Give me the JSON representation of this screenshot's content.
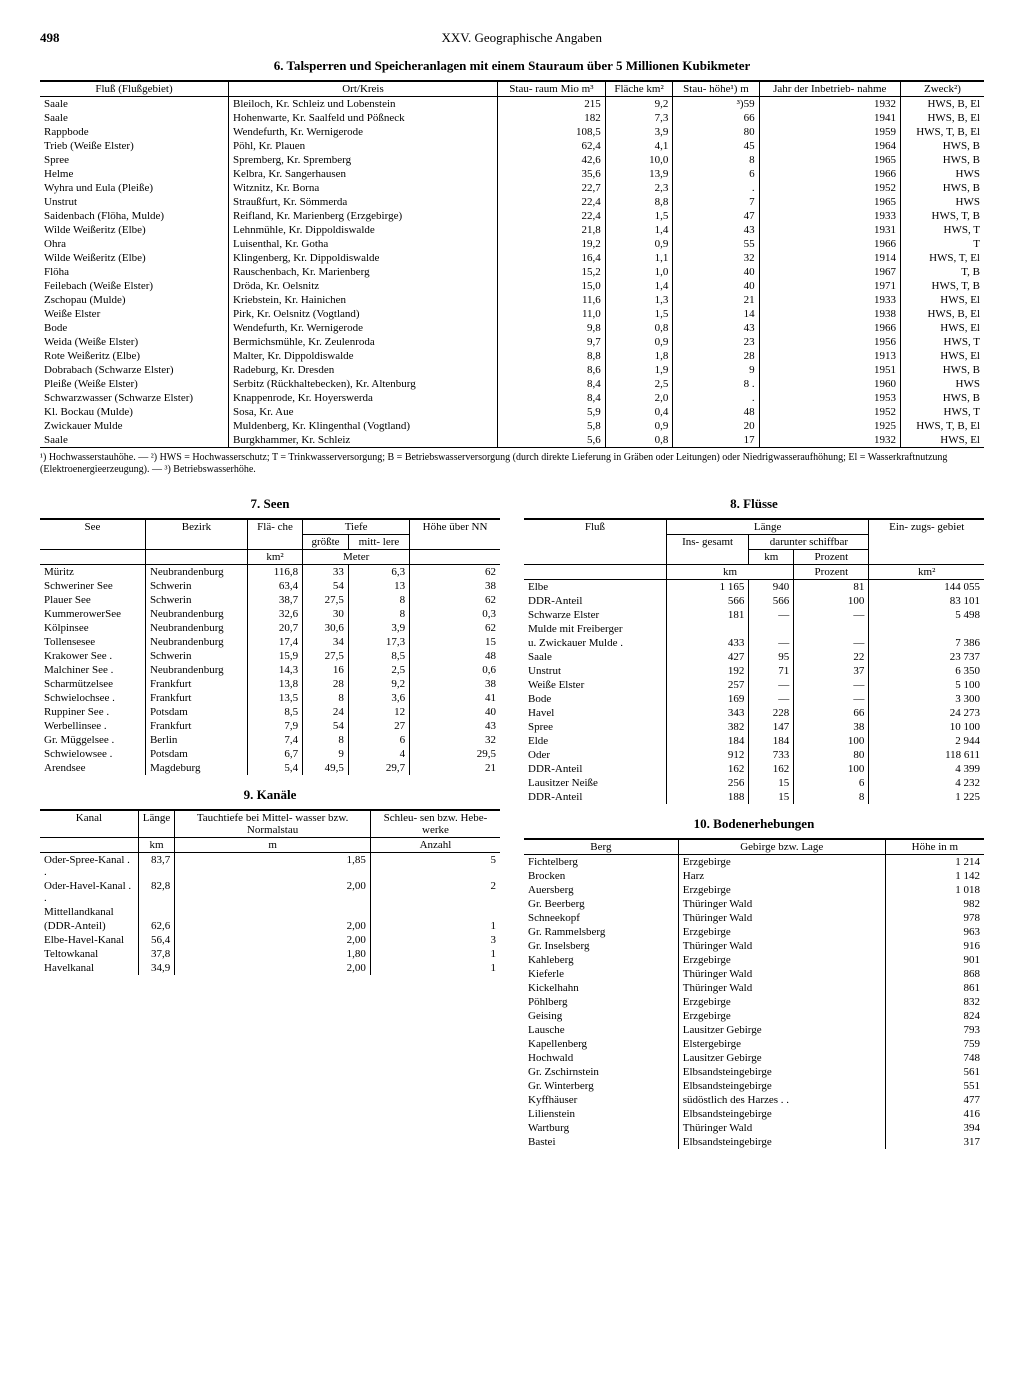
{
  "header": {
    "page_number": "498",
    "chapter": "XXV. Geographische Angaben"
  },
  "table6": {
    "title": "6. Talsperren und Speicheranlagen mit einem Stauraum über 5 Millionen Kubikmeter",
    "columns": [
      "Fluß (Flußgebiet)",
      "Ort/Kreis",
      "Stau-\nraum\nMio m³",
      "Fläche\nkm²",
      "Stau-\nhöhe¹)\nm",
      "Jahr der\nInbetrieb-\nnahme",
      "Zweck²)"
    ],
    "rows": [
      [
        "Saale",
        "Bleiloch, Kr. Schleiz und Lobenstein",
        "215",
        "9,2",
        "³)59",
        "1932",
        "HWS, B, El"
      ],
      [
        "Saale",
        "Hohenwarte, Kr. Saalfeld und Pößneck",
        "182",
        "7,3",
        "66",
        "1941",
        "HWS, B, El"
      ],
      [
        "Rappbode",
        "Wendefurth, Kr. Wernigerode",
        "108,5",
        "3,9",
        "80",
        "1959",
        "HWS, T, B, El"
      ],
      [
        "Trieb (Weiße Elster)",
        "Pöhl, Kr. Plauen",
        "62,4",
        "4,1",
        "45",
        "1964",
        "HWS, B"
      ],
      [
        "Spree",
        "Spremberg, Kr. Spremberg",
        "42,6",
        "10,0",
        "8",
        "1965",
        "HWS, B"
      ],
      [
        "Helme",
        "Kelbra, Kr. Sangerhausen",
        "35,6",
        "13,9",
        "6",
        "1966",
        "HWS"
      ],
      [
        "Wyhra und Eula (Pleiße)",
        "Witznitz, Kr. Borna",
        "22,7",
        "2,3",
        ".",
        "1952",
        "HWS, B"
      ],
      [
        "Unstrut",
        "Straußfurt, Kr. Sömmerda",
        "22,4",
        "8,8",
        "7",
        "1965",
        "HWS"
      ],
      [
        "Saidenbach (Flöha, Mulde)",
        "Reifland, Kr. Marienberg (Erzgebirge)",
        "22,4",
        "1,5",
        "47",
        "1933",
        "HWS, T, B"
      ],
      [
        "Wilde Weißeritz (Elbe)",
        "Lehnmühle, Kr. Dippoldiswalde",
        "21,8",
        "1,4",
        "43",
        "1931",
        "HWS, T"
      ],
      [
        "Ohra",
        "Luisenthal, Kr. Gotha",
        "19,2",
        "0,9",
        "55",
        "1966",
        "T"
      ],
      [
        "Wilde Weißeritz (Elbe)",
        "Klingenberg, Kr. Dippoldiswalde",
        "16,4",
        "1,1",
        "32",
        "1914",
        "HWS, T, El"
      ],
      [
        "Flöha",
        "Rauschenbach, Kr. Marienberg",
        "15,2",
        "1,0",
        "40",
        "1967",
        "T, B"
      ],
      [
        "Feilebach (Weiße Elster)",
        "Dröda, Kr. Oelsnitz",
        "15,0",
        "1,4",
        "40",
        "1971",
        "HWS, T, B"
      ],
      [
        "Zschopau (Mulde)",
        "Kriebstein, Kr. Hainichen",
        "11,6",
        "1,3",
        "21",
        "1933",
        "HWS, El"
      ],
      [
        "Weiße Elster",
        "Pirk, Kr. Oelsnitz (Vogtland)",
        "11,0",
        "1,5",
        "14",
        "1938",
        "HWS, B, El"
      ],
      [
        "Bode",
        "Wendefurth, Kr. Wernigerode",
        "9,8",
        "0,8",
        "43",
        "1966",
        "HWS, El"
      ],
      [
        "Weida (Weiße Elster)",
        "Bermichsmühle, Kr. Zeulenroda",
        "9,7",
        "0,9",
        "23",
        "1956",
        "HWS, T"
      ],
      [
        "Rote Weißeritz (Elbe)",
        "Malter, Kr. Dippoldiswalde",
        "8,8",
        "1,8",
        "28",
        "1913",
        "HWS, El"
      ],
      [
        "Dobrabach (Schwarze Elster)",
        "Radeburg, Kr. Dresden",
        "8,6",
        "1,9",
        "9",
        "1951",
        "HWS, B"
      ],
      [
        "Pleiße (Weiße Elster)",
        "Serbitz (Rückhaltebecken), Kr. Altenburg",
        "8,4",
        "2,5",
        "8 .",
        "1960",
        "HWS"
      ],
      [
        "Schwarzwasser (Schwarze Elster)",
        "Knappenrode, Kr. Hoyerswerda",
        "8,4",
        "2,0",
        ".",
        "1953",
        "HWS, B"
      ],
      [
        "Kl. Bockau (Mulde)",
        "Sosa, Kr. Aue",
        "5,9",
        "0,4",
        "48",
        "1952",
        "HWS, T"
      ],
      [
        "Zwickauer Mulde",
        "Muldenberg, Kr. Klingenthal (Vogtland)",
        "5,8",
        "0,9",
        "20",
        "1925",
        "HWS, T, B, El"
      ],
      [
        "Saale",
        "Burgkhammer, Kr. Schleiz",
        "5,6",
        "0,8",
        "17",
        "1932",
        "HWS, El"
      ]
    ],
    "footnotes": "¹) Hochwasserstauhöhe. — ²) HWS = Hochwasserschutz; T = Trinkwasserversorgung; B = Betriebswasserversorgung (durch direkte Lieferung in Gräben oder Leitungen) oder Niedrigwasseraufhöhung; El = Wasserkraftnutzung (Elektroenergieerzeugung). — ³) Betriebswasserhöhe."
  },
  "table7": {
    "title": "7. Seen",
    "columns": [
      "See",
      "Bezirk",
      "Flä-\nche",
      "Tiefe",
      "Höhe\nüber\nNN"
    ],
    "subcolumns": [
      "",
      "",
      "km²",
      "größte",
      "mitt-\nlere",
      ""
    ],
    "units": [
      "",
      "",
      "km²",
      "Meter",
      "Meter",
      ""
    ],
    "rows": [
      [
        "Müritz",
        "Neubrandenburg",
        "116,8",
        "33",
        "6,3",
        "62"
      ],
      [
        "Schweriner See",
        "Schwerin",
        "63,4",
        "54",
        "13",
        "38"
      ],
      [
        "Plauer See",
        "Schwerin",
        "38,7",
        "27,5",
        "8",
        "62"
      ],
      [
        "KummerowerSee",
        "Neubrandenburg",
        "32,6",
        "30",
        "8",
        "0,3"
      ],
      [
        "Kölpinsee",
        "Neubrandenburg",
        "20,7",
        "30,6",
        "3,9",
        "62"
      ],
      [
        "Tollensesee",
        "Neubrandenburg",
        "17,4",
        "34",
        "17,3",
        "15"
      ],
      [
        "Krakower See .",
        "Schwerin",
        "15,9",
        "27,5",
        "8,5",
        "48"
      ],
      [
        "Malchiner See .",
        "Neubrandenburg",
        "14,3",
        "16",
        "2,5",
        "0,6"
      ],
      [
        "Scharmützelsee",
        "Frankfurt",
        "13,8",
        "28",
        "9,2",
        "38"
      ],
      [
        "Schwielochsee .",
        "Frankfurt",
        "13,5",
        "8",
        "3,6",
        "41"
      ],
      [
        "Ruppiner See .",
        "Potsdam",
        "8,5",
        "24",
        "12",
        "40"
      ],
      [
        "Werbellinsee .",
        "Frankfurt",
        "7,9",
        "54",
        "27",
        "43"
      ],
      [
        "Gr. Müggelsee .",
        "Berlin",
        "7,4",
        "8",
        "6",
        "32"
      ],
      [
        "Schwielowsee .",
        "Potsdam",
        "6,7",
        "9",
        "4",
        "29,5"
      ],
      [
        "Arendsee",
        "Magdeburg",
        "5,4",
        "49,5",
        "29,7",
        "21"
      ]
    ]
  },
  "table8": {
    "title": "8. Flüsse",
    "columns": [
      "Fluß",
      "Länge",
      "Ein-\nzugs-\ngebiet"
    ],
    "sub1": [
      "",
      "Ins-\ngesamt",
      "darunter\nschiffbar",
      ""
    ],
    "sub2": [
      "",
      "km",
      "km",
      "Prozent",
      "km²"
    ],
    "rows": [
      [
        "Elbe",
        "1 165",
        "940",
        "81",
        "144 055"
      ],
      [
        "  DDR-Anteil",
        "566",
        "566",
        "100",
        "83 101"
      ],
      [
        "  Schwarze Elster",
        "181",
        "—",
        "—",
        "5 498"
      ],
      [
        "  Mulde mit Freiberger",
        "",
        "",
        "",
        ""
      ],
      [
        "   u. Zwickauer Mulde .",
        "433",
        "—",
        "—",
        "7 386"
      ],
      [
        "  Saale",
        "427",
        "95",
        "22",
        "23 737"
      ],
      [
        "   Unstrut",
        "192",
        "71",
        "37",
        "6 350"
      ],
      [
        "   Weiße Elster",
        "257",
        "—",
        "—",
        "5 100"
      ],
      [
        "   Bode",
        "169",
        "—",
        "—",
        "3 300"
      ],
      [
        "  Havel",
        "343",
        "228",
        "66",
        "24 273"
      ],
      [
        "   Spree",
        "382",
        "147",
        "38",
        "10 100"
      ],
      [
        "  Elde",
        "184",
        "184",
        "100",
        "2 944"
      ],
      [
        "Oder",
        "912",
        "733",
        "80",
        "118 611"
      ],
      [
        "  DDR-Anteil",
        "162",
        "162",
        "100",
        "4 399"
      ],
      [
        "  Lausitzer Neiße",
        "256",
        "15",
        "6",
        "4 232"
      ],
      [
        "   DDR-Anteil",
        "188",
        "15",
        "8",
        "1 225"
      ]
    ]
  },
  "table9": {
    "title": "9. Kanäle",
    "columns": [
      "Kanal",
      "Länge",
      "Tauchtiefe\nbei\nMittel-\nwasser\nbzw.\nNormalstau",
      "Schleu-\nsen\nbzw.\nHebe-\nwerke"
    ],
    "units": [
      "",
      "km",
      "m",
      "Anzahl"
    ],
    "rows": [
      [
        "Oder-Spree-Kanal . .",
        "83,7",
        "1,85",
        "5"
      ],
      [
        "Oder-Havel-Kanal . .",
        "82,8",
        "2,00",
        "2"
      ],
      [
        "Mittellandkanal",
        "",
        "",
        ""
      ],
      [
        "  (DDR-Anteil)",
        "62,6",
        "2,00",
        "1"
      ],
      [
        "Elbe-Havel-Kanal",
        "56,4",
        "2,00",
        "3"
      ],
      [
        "Teltowkanal",
        "37,8",
        "1,80",
        "1"
      ],
      [
        "Havelkanal",
        "34,9",
        "2,00",
        "1"
      ]
    ]
  },
  "table10": {
    "title": "10. Bodenerhebungen",
    "columns": [
      "Berg",
      "Gebirge bzw. Lage",
      "Höhe in m"
    ],
    "rows": [
      [
        "Fichtelberg",
        "Erzgebirge",
        "1 214"
      ],
      [
        "Brocken",
        "Harz",
        "1 142"
      ],
      [
        "Auersberg",
        "Erzgebirge",
        "1 018"
      ],
      [
        "Gr. Beerberg",
        "Thüringer Wald",
        "982"
      ],
      [
        "Schneekopf",
        "Thüringer Wald",
        "978"
      ],
      [
        "Gr. Rammelsberg",
        "Erzgebirge",
        "963"
      ],
      [
        "Gr. Inselsberg",
        "Thüringer Wald",
        "916"
      ],
      [
        "Kahleberg",
        "Erzgebirge",
        "901"
      ],
      [
        "Kieferle",
        "Thüringer Wald",
        "868"
      ],
      [
        "Kickelhahn",
        "Thüringer Wald",
        "861"
      ],
      [
        "Pöhlberg",
        "Erzgebirge",
        "832"
      ],
      [
        "Geising",
        "Erzgebirge",
        "824"
      ],
      [
        "Lausche",
        "Lausitzer Gebirge",
        "793"
      ],
      [
        "Kapellenberg",
        "Elstergebirge",
        "759"
      ],
      [
        "Hochwald",
        "Lausitzer Gebirge",
        "748"
      ],
      [
        "Gr. Zschirnstein",
        "Elbsandsteingebirge",
        "561"
      ],
      [
        "Gr. Winterberg",
        "Elbsandsteingebirge",
        "551"
      ],
      [
        "Kyffhäuser",
        "südöstlich des Harzes . .",
        "477"
      ],
      [
        "Lilienstein",
        "Elbsandsteingebirge",
        "416"
      ],
      [
        "Wartburg",
        "Thüringer Wald",
        "394"
      ],
      [
        "Bastei",
        "Elbsandsteingebirge",
        "317"
      ]
    ]
  }
}
